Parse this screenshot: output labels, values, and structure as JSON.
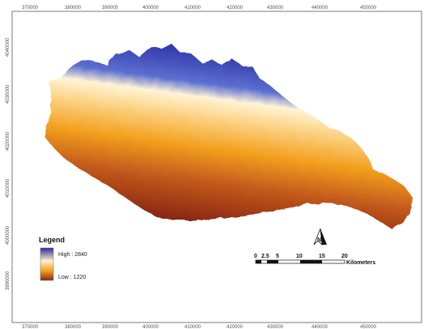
{
  "map": {
    "x_ticks_top": [
      "370000",
      "380000",
      "390000",
      "400000",
      "410000",
      "420000",
      "430000",
      "440000",
      "450000"
    ],
    "x_ticks_bottom": [
      "370000",
      "380000",
      "390000",
      "400000",
      "410000",
      "420000",
      "430000",
      "440000",
      "450000"
    ],
    "y_ticks_left": [
      "4040000",
      "4030000",
      "4020000",
      "4010000",
      "4000000",
      "3990000"
    ],
    "colors": {
      "high": "#2a2ca0",
      "mid_light": "#fff1c8",
      "mid": "#f6a623",
      "low": "#8e2a14"
    }
  },
  "legend": {
    "title": "Legend",
    "high_label": "High : 2840",
    "low_label": "Low : 1220"
  },
  "scale_bar": {
    "labels": [
      "0",
      "2.5",
      "5",
      "10",
      "15",
      "20"
    ],
    "unit": "Kilometers"
  },
  "north_arrow": {
    "icon": "north-arrow-icon"
  }
}
